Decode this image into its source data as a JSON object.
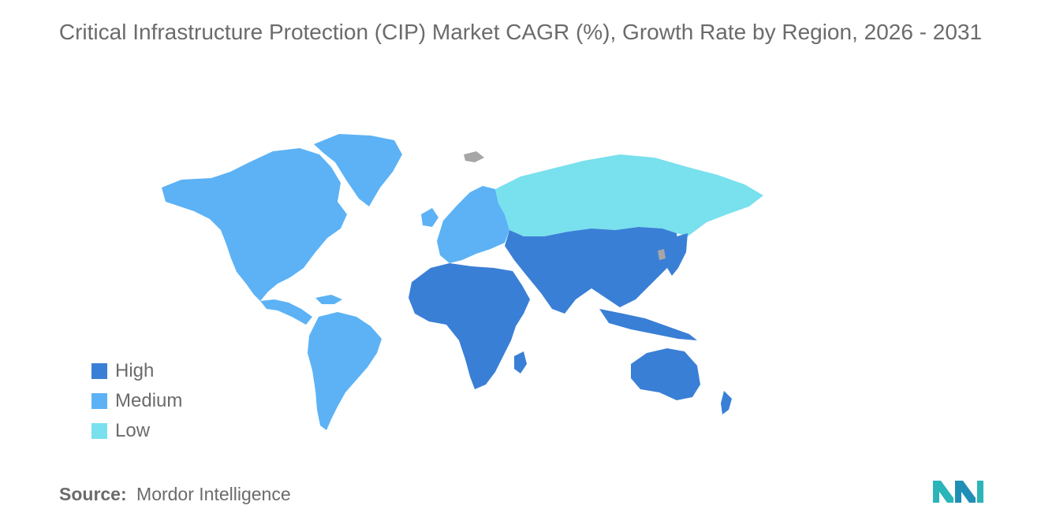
{
  "title": "Critical Infrastructure Protection (CIP) Market CAGR (%), Growth Rate by Region, 2026 - 2031",
  "legend": [
    {
      "label": "High",
      "color": "#3a7fd6"
    },
    {
      "label": "Medium",
      "color": "#5cb2f5"
    },
    {
      "label": "Low",
      "color": "#79e0ee"
    }
  ],
  "no_data_color": "#a6a6a6",
  "regions": {
    "north_america": "Medium",
    "south_america": "Medium",
    "europe": "Medium",
    "russia": "Low",
    "asia_pacific": "High",
    "middle_east_africa": "High",
    "oceania": "High"
  },
  "source": {
    "label": "Source:",
    "text": "Mordor Intelligence"
  },
  "logo": {
    "icon": "mordor-intelligence-logo-icon",
    "color": "#2bb5b8"
  }
}
